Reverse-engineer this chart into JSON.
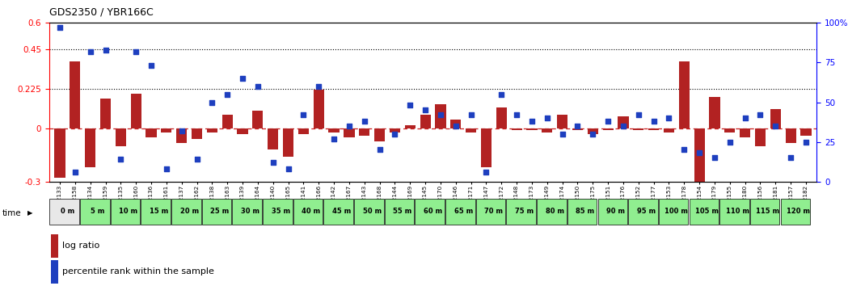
{
  "title": "GDS2350 / YBR166C",
  "samples": [
    "GSM112133",
    "GSM112158",
    "GSM112134",
    "GSM112159",
    "GSM112135",
    "GSM112160",
    "GSM112136",
    "GSM112161",
    "GSM112137",
    "GSM112162",
    "GSM112138",
    "GSM112163",
    "GSM112139",
    "GSM112164",
    "GSM112140",
    "GSM112165",
    "GSM112141",
    "GSM112166",
    "GSM112142",
    "GSM112167",
    "GSM112143",
    "GSM112168",
    "GSM112144",
    "GSM112169",
    "GSM112145",
    "GSM112170",
    "GSM112146",
    "GSM112171",
    "GSM112147",
    "GSM112172",
    "GSM112148",
    "GSM112173",
    "GSM112149",
    "GSM112174",
    "GSM112150",
    "GSM112175",
    "GSM112151",
    "GSM112176",
    "GSM112152",
    "GSM112177",
    "GSM112153",
    "GSM112178",
    "GSM112154",
    "GSM112179",
    "GSM112155",
    "GSM112180",
    "GSM112156",
    "GSM112181",
    "GSM112157",
    "GSM112182"
  ],
  "log_ratio": [
    -0.28,
    0.38,
    -0.22,
    0.17,
    -0.1,
    0.2,
    -0.05,
    -0.02,
    -0.08,
    -0.06,
    -0.02,
    0.08,
    -0.03,
    0.1,
    -0.12,
    -0.16,
    -0.03,
    0.22,
    -0.02,
    -0.05,
    -0.04,
    -0.07,
    -0.02,
    0.02,
    0.08,
    0.14,
    0.05,
    -0.02,
    -0.22,
    0.12,
    -0.01,
    -0.01,
    -0.02,
    0.08,
    -0.01,
    -0.03,
    -0.01,
    0.07,
    -0.01,
    -0.01,
    -0.02,
    0.38,
    -0.35,
    0.18,
    -0.02,
    -0.05,
    -0.1,
    0.11,
    -0.08,
    -0.04
  ],
  "percentile": [
    97,
    6,
    82,
    83,
    14,
    82,
    73,
    8,
    32,
    14,
    50,
    55,
    65,
    60,
    12,
    8,
    42,
    60,
    27,
    35,
    38,
    20,
    30,
    48,
    45,
    42,
    35,
    42,
    6,
    55,
    42,
    38,
    40,
    30,
    35,
    30,
    38,
    35,
    42,
    38,
    40,
    20,
    18,
    15,
    25,
    40,
    42,
    35,
    15,
    25
  ],
  "time_labels": [
    "0 m",
    "5 m",
    "10 m",
    "15 m",
    "20 m",
    "25 m",
    "30 m",
    "35 m",
    "40 m",
    "45 m",
    "50 m",
    "55 m",
    "60 m",
    "65 m",
    "70 m",
    "75 m",
    "80 m",
    "85 m",
    "90 m",
    "95 m",
    "100 m",
    "105 m",
    "110 m",
    "115 m",
    "120 m"
  ],
  "bar_color": "#B22222",
  "dot_color": "#1E3FBF",
  "dashed_line_color": "#CC2222",
  "ylim_left": [
    -0.3,
    0.6
  ],
  "ylim_right": [
    0,
    100
  ],
  "yticks_left": [
    -0.3,
    0.0,
    0.225,
    0.45,
    0.6
  ],
  "yticks_right": [
    0,
    25,
    50,
    75,
    100
  ],
  "hlines": [
    0.225,
    0.45
  ],
  "bar_width": 0.7,
  "time_color_0m": "#E8E8E8",
  "time_color_rest": "#90EE90",
  "time_color_border": "#000000"
}
